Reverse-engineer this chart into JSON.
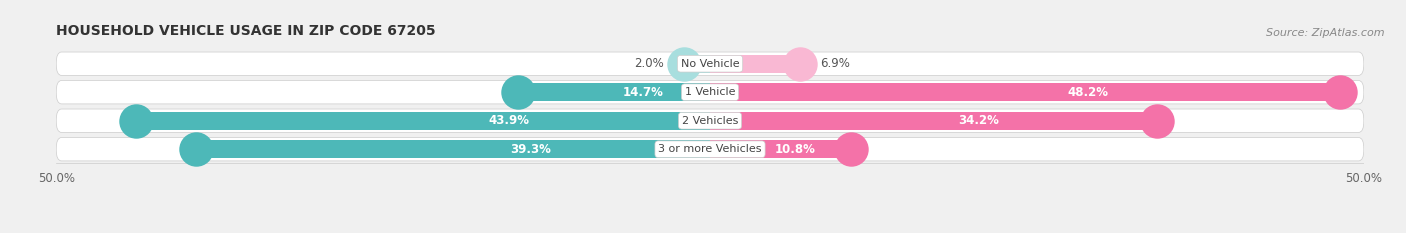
{
  "title": "HOUSEHOLD VEHICLE USAGE IN ZIP CODE 67205",
  "source": "Source: ZipAtlas.com",
  "categories": [
    "No Vehicle",
    "1 Vehicle",
    "2 Vehicles",
    "3 or more Vehicles"
  ],
  "owner_values": [
    2.0,
    14.7,
    43.9,
    39.3
  ],
  "renter_values": [
    6.9,
    48.2,
    34.2,
    10.8
  ],
  "owner_color": "#4db8b8",
  "renter_color": "#f472a8",
  "owner_color_light": "#a8dede",
  "renter_color_light": "#f9b8d3",
  "xlim": [
    -50,
    50
  ],
  "xticklabels": [
    "50.0%",
    "50.0%"
  ],
  "bar_height": 0.62,
  "background_color": "#f0f0f0",
  "bar_bg_color": "#e2e2e2",
  "title_fontsize": 10,
  "label_fontsize": 8.5,
  "source_fontsize": 8,
  "value_text_color_inside": "white",
  "value_text_color_outside": "#555555"
}
